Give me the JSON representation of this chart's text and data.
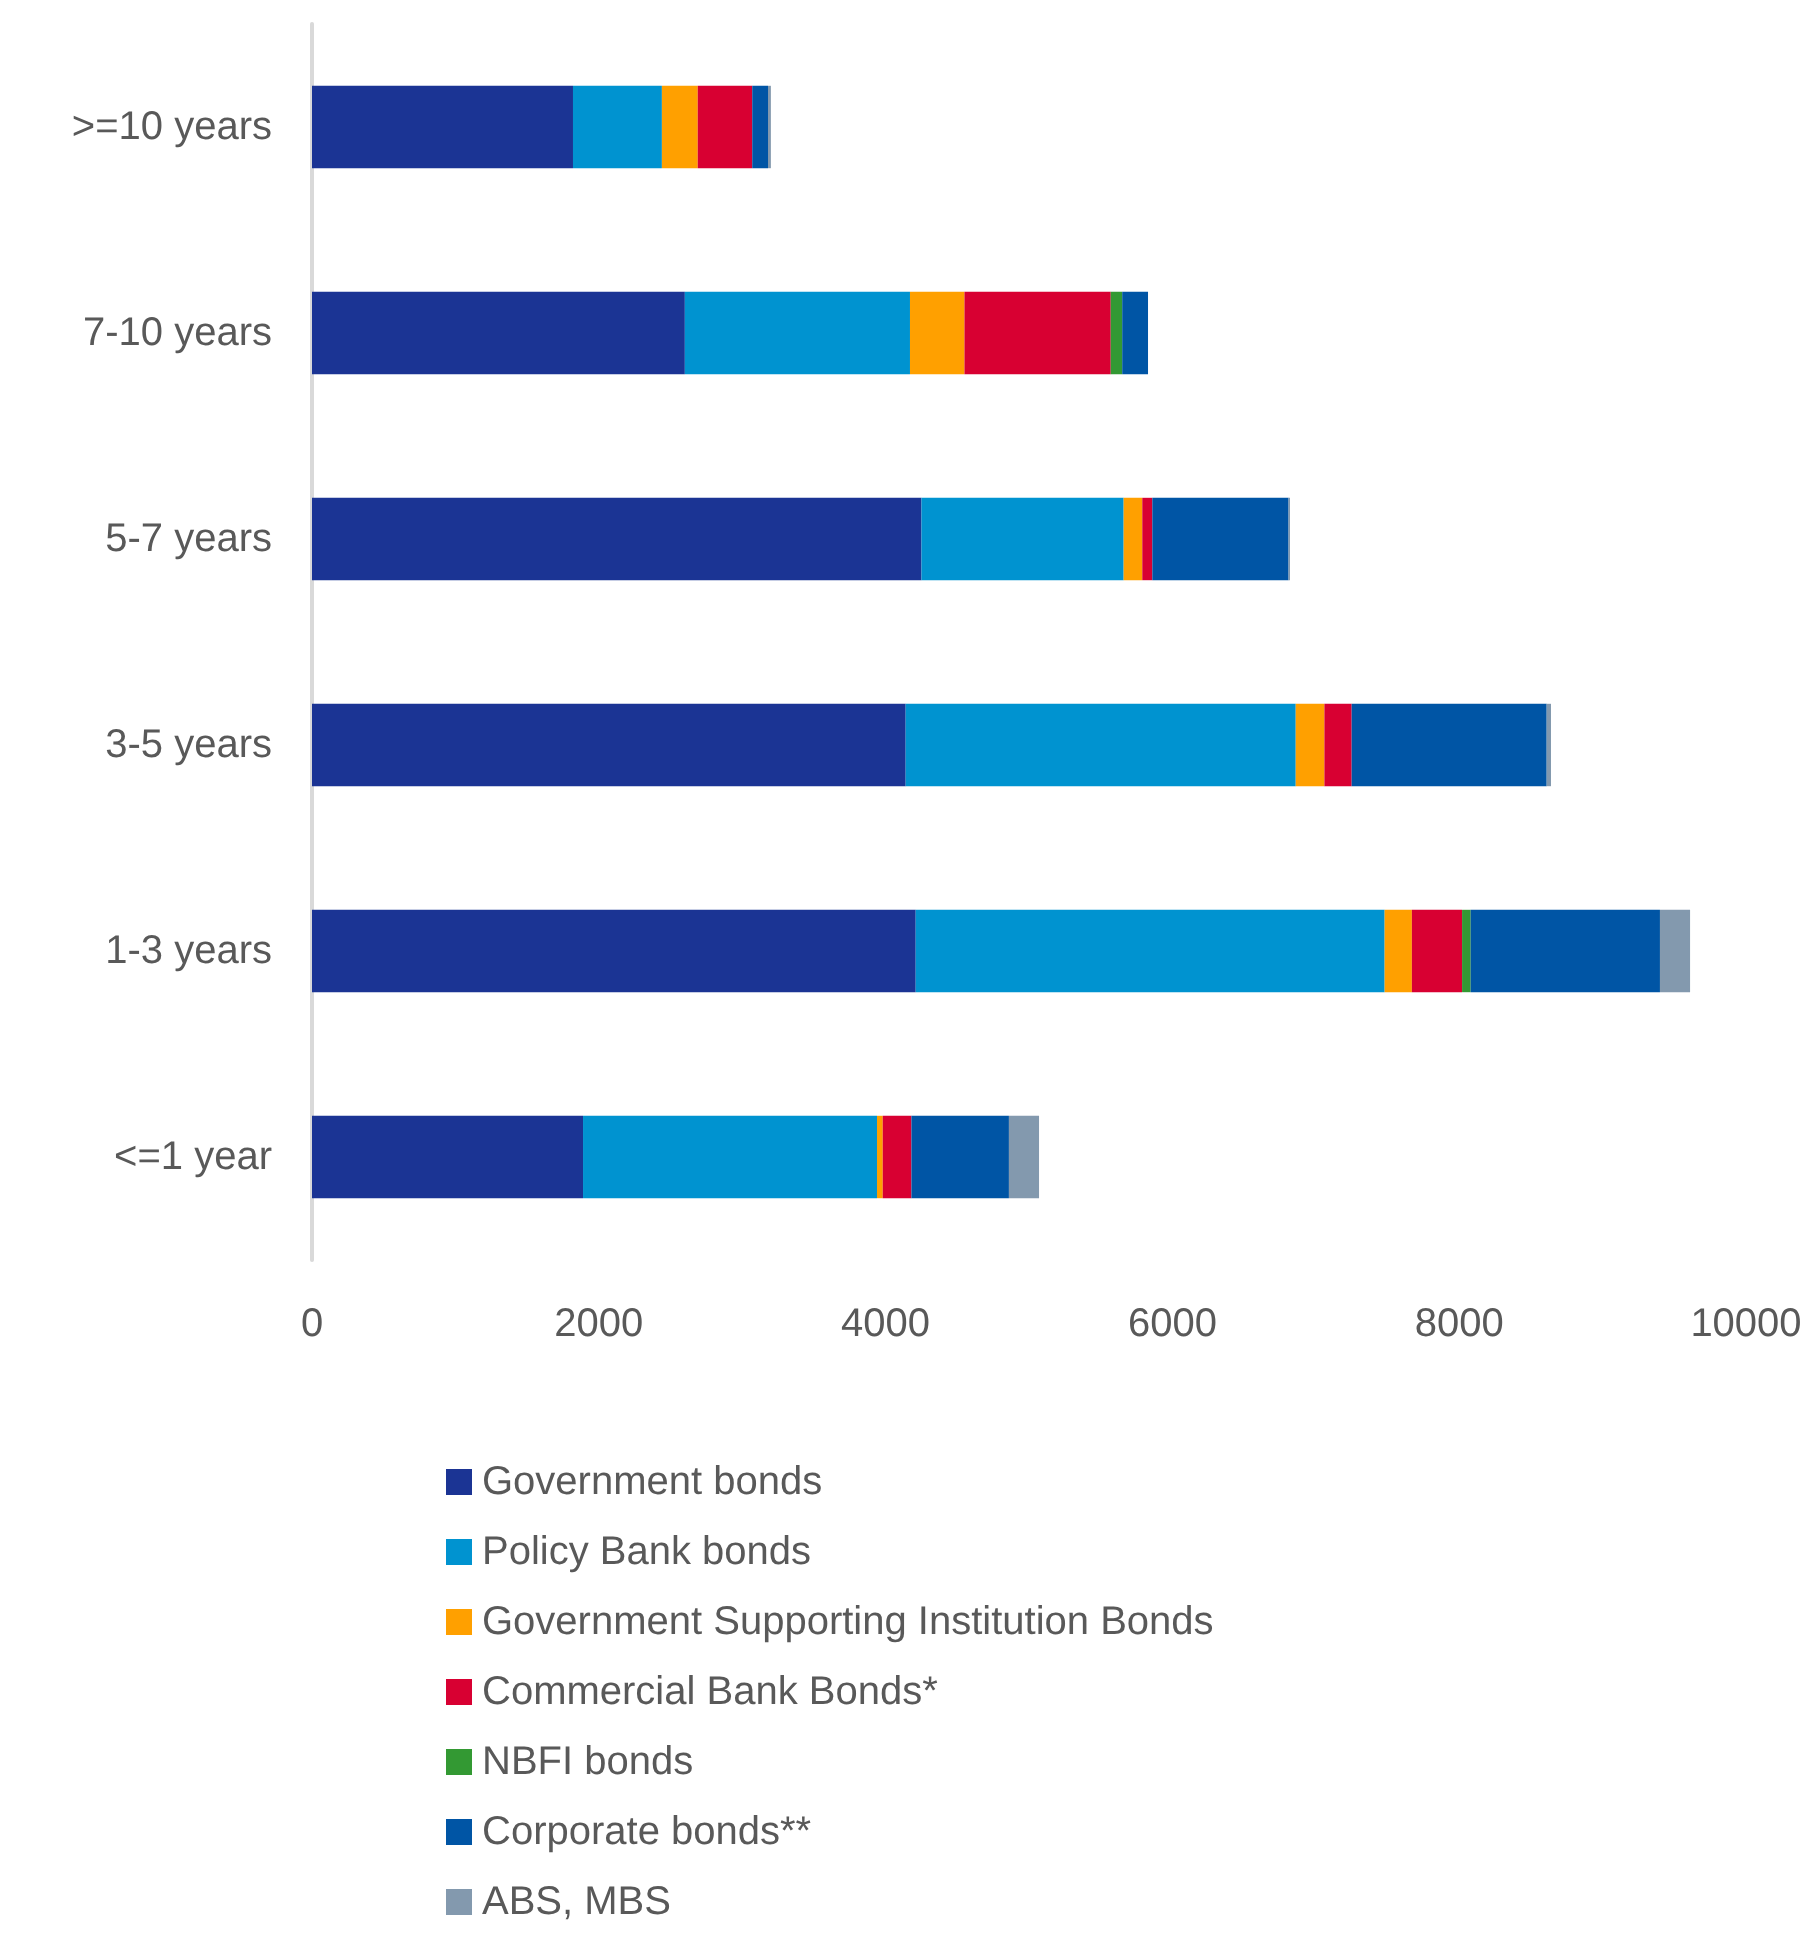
{
  "chart_data": {
    "type": "bar",
    "orientation": "horizontal",
    "stacked": true,
    "categories": [
      ">=10 years",
      "7-10 years",
      "5-7 years",
      "3-5 years",
      "1-3 years",
      "<=1 year"
    ],
    "series": [
      {
        "name": "Government bonds",
        "color": "#1b3494",
        "values": [
          1820,
          2600,
          4250,
          4140,
          4210,
          1890
        ]
      },
      {
        "name": "Policy Bank bonds",
        "color": "#0093d0",
        "values": [
          620,
          1570,
          1410,
          2720,
          3270,
          2050
        ]
      },
      {
        "name": "Government Supporting Institution Bonds",
        "color": "#ffa000",
        "values": [
          250,
          380,
          130,
          200,
          190,
          40
        ]
      },
      {
        "name": "Commercial Bank Bonds*",
        "color": "#d80032",
        "values": [
          380,
          1020,
          70,
          190,
          350,
          200
        ]
      },
      {
        "name": "NBFI bonds",
        "color": "#339933",
        "values": [
          0,
          80,
          0,
          0,
          60,
          0
        ]
      },
      {
        "name": "Corporate bonds**",
        "color": "#0055a5",
        "values": [
          110,
          180,
          950,
          1360,
          1320,
          680
        ]
      },
      {
        "name": "ABS, MBS",
        "color": "#8399ae",
        "values": [
          20,
          0,
          10,
          30,
          210,
          210
        ]
      }
    ],
    "xlim": [
      0,
      10000
    ],
    "xticks": [
      0,
      2000,
      4000,
      6000,
      8000,
      10000
    ],
    "grid": false,
    "legend": "bottom"
  }
}
